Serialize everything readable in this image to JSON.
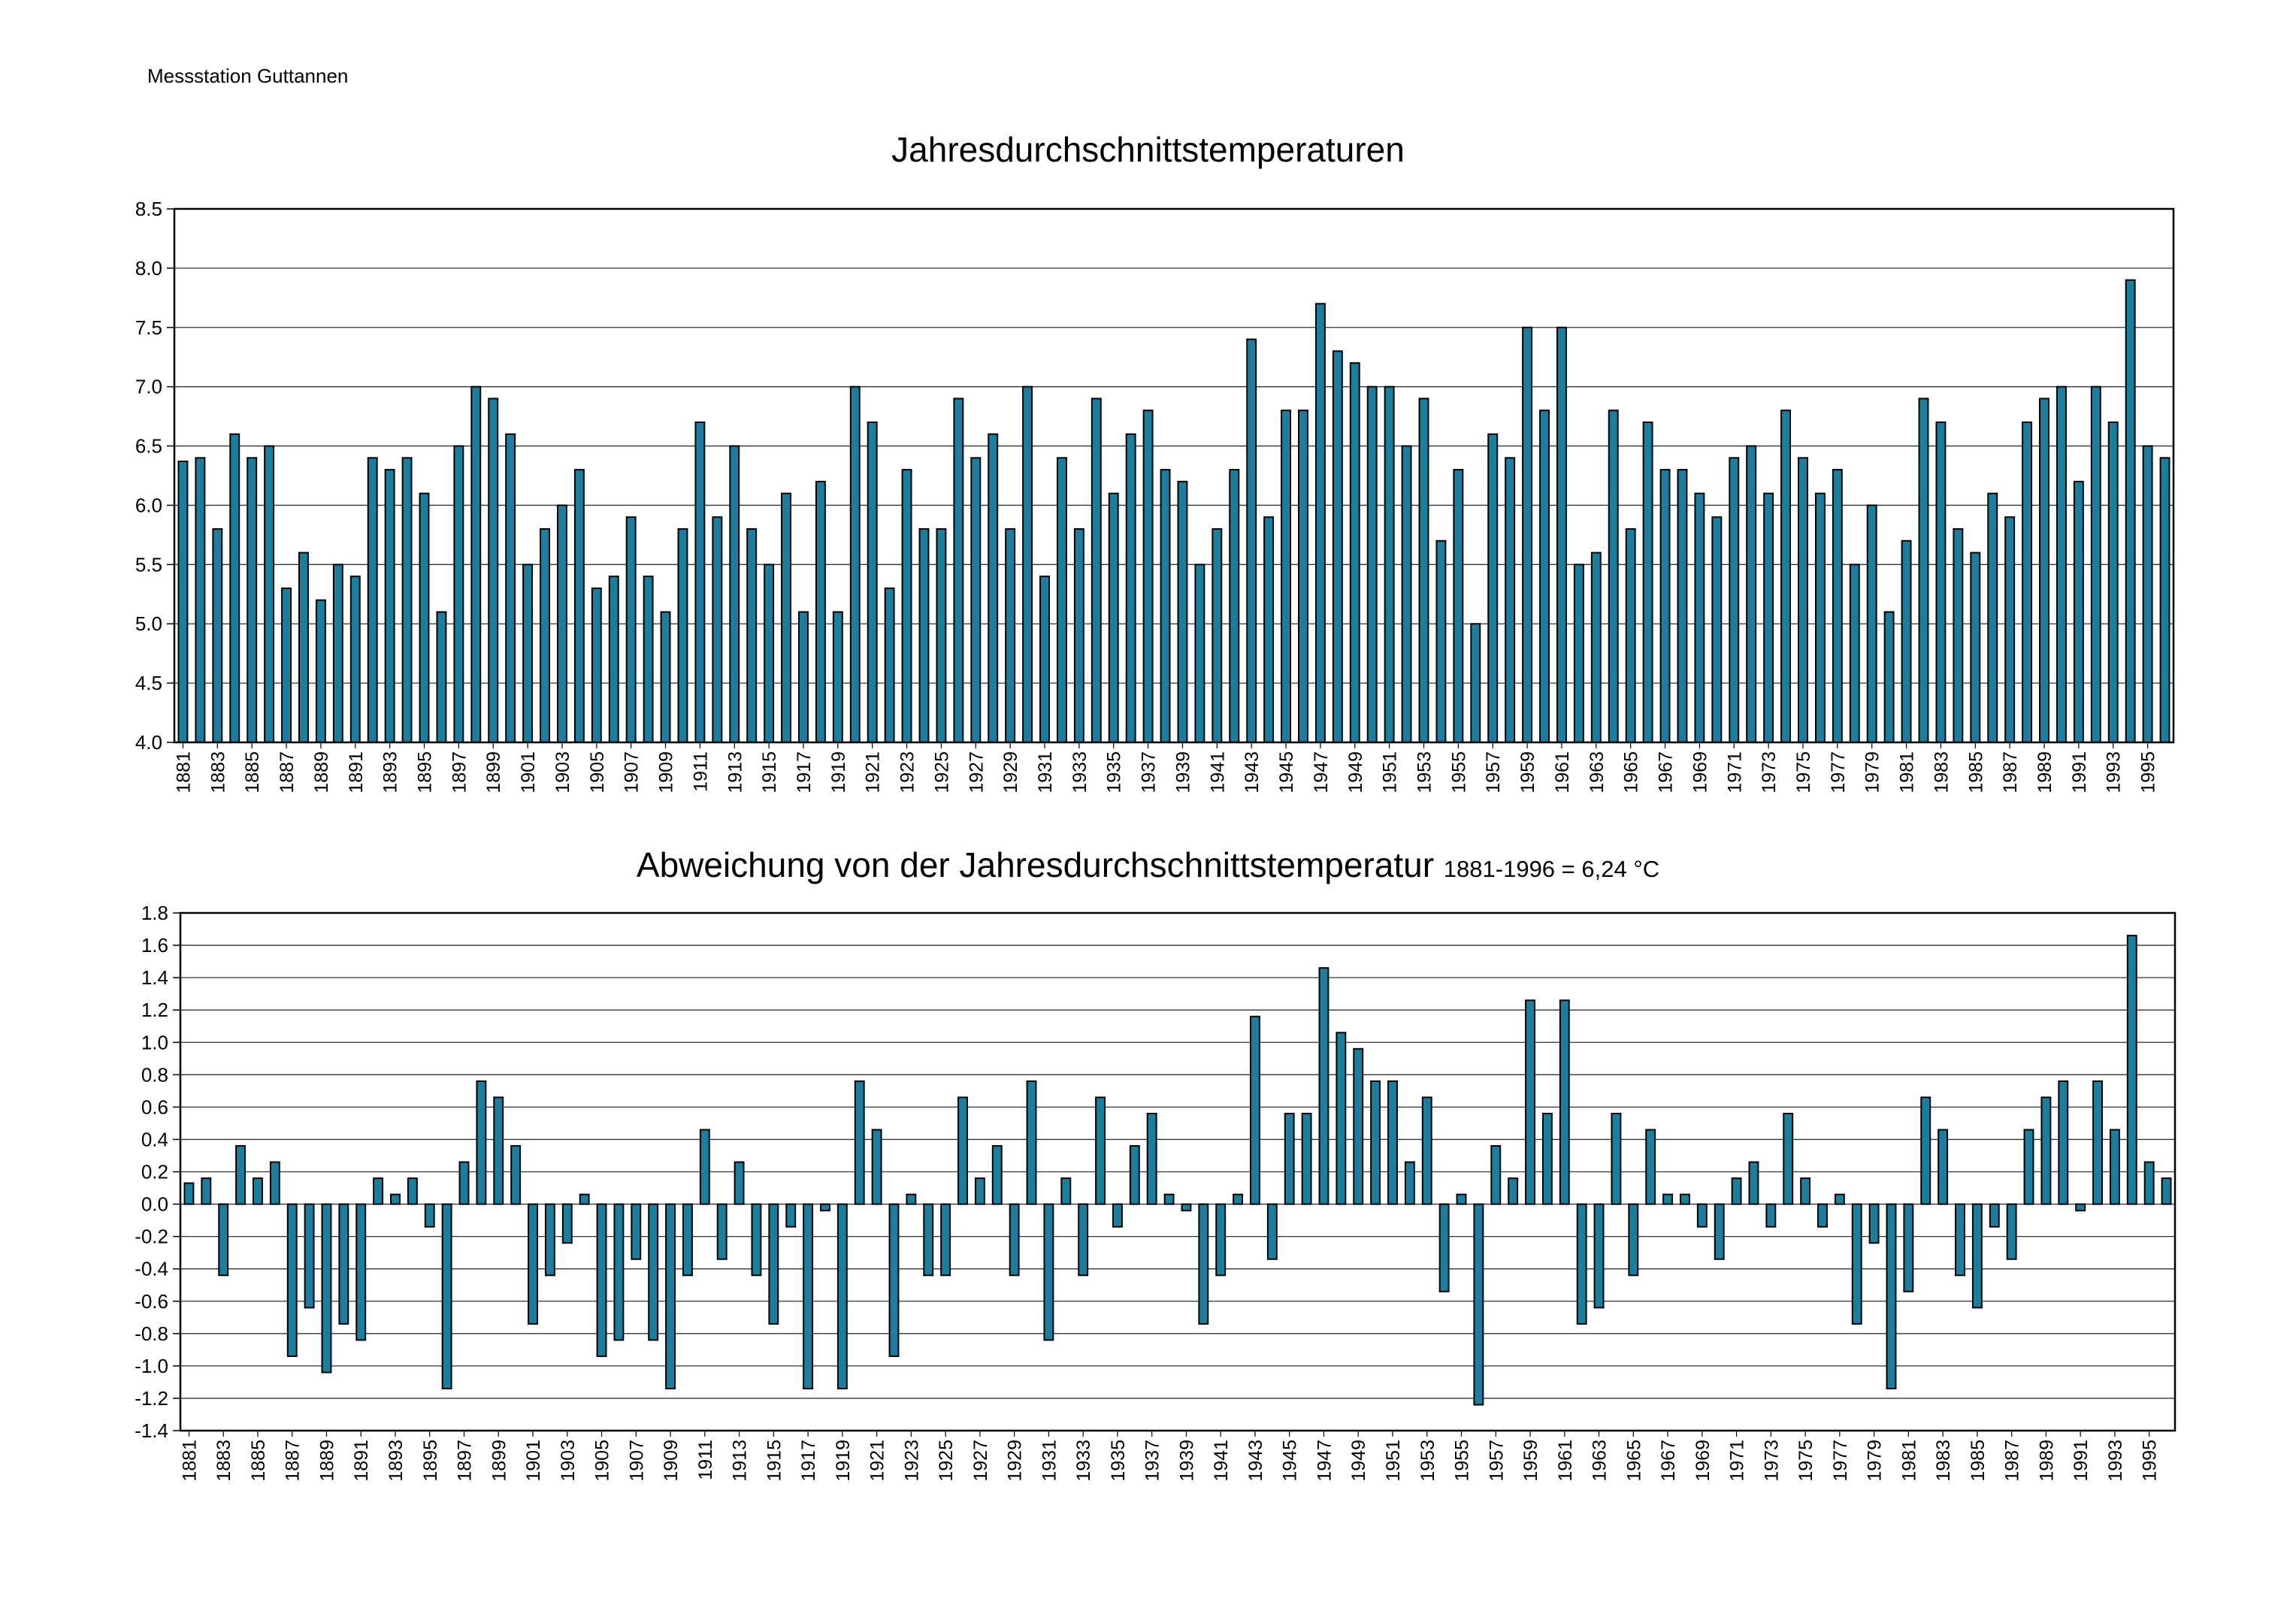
{
  "header": {
    "station": "Messstation Guttannen"
  },
  "chart_data": [
    {
      "type": "bar",
      "title": "Jahresdurchschnittstemperaturen",
      "xlabel": "",
      "ylabel": "",
      "ylim": [
        4.0,
        8.5
      ],
      "yticks": [
        "4.0",
        "4.5",
        "5.0",
        "5.5",
        "6.0",
        "6.5",
        "7.0",
        "7.5",
        "8.0",
        "8.5"
      ],
      "grid": true,
      "bar_color": "#1a7f9e",
      "years": [
        1881,
        1882,
        1883,
        1884,
        1885,
        1886,
        1887,
        1888,
        1889,
        1890,
        1891,
        1892,
        1893,
        1894,
        1895,
        1896,
        1897,
        1898,
        1899,
        1900,
        1901,
        1902,
        1903,
        1904,
        1905,
        1906,
        1907,
        1908,
        1909,
        1910,
        1911,
        1912,
        1913,
        1914,
        1915,
        1916,
        1917,
        1918,
        1919,
        1920,
        1921,
        1922,
        1923,
        1924,
        1925,
        1926,
        1927,
        1928,
        1929,
        1930,
        1931,
        1932,
        1933,
        1934,
        1935,
        1936,
        1937,
        1938,
        1939,
        1940,
        1941,
        1942,
        1943,
        1944,
        1945,
        1946,
        1947,
        1948,
        1949,
        1950,
        1951,
        1952,
        1953,
        1954,
        1955,
        1956,
        1957,
        1958,
        1959,
        1960,
        1961,
        1962,
        1963,
        1964,
        1965,
        1966,
        1967,
        1968,
        1969,
        1970,
        1971,
        1972,
        1973,
        1974,
        1975,
        1976,
        1977,
        1978,
        1979,
        1980,
        1981,
        1982,
        1983,
        1984,
        1985,
        1986,
        1987,
        1988,
        1989,
        1990,
        1991,
        1992,
        1993,
        1994,
        1995,
        1996
      ],
      "xtick_labels": [
        "1881",
        "1883",
        "1885",
        "1887",
        "1889",
        "1891",
        "1893",
        "1895",
        "1897",
        "1899",
        "1901",
        "1903",
        "1905",
        "1907",
        "1909",
        "1911",
        "1913",
        "1915",
        "1917",
        "1919",
        "1921",
        "1923",
        "1925",
        "1927",
        "1929",
        "1931",
        "1933",
        "1935",
        "1937",
        "1939",
        "1941",
        "1943",
        "1945",
        "1947",
        "1949",
        "1951",
        "1953",
        "1955",
        "1957",
        "1959",
        "1961",
        "1963",
        "1965",
        "1967",
        "1969",
        "1971",
        "1973",
        "1975",
        "1977",
        "1979",
        "1981",
        "1983",
        "1985",
        "1987",
        "1989",
        "1991",
        "1993",
        "1995"
      ],
      "values": [
        6.37,
        6.4,
        5.8,
        6.6,
        6.4,
        6.5,
        5.3,
        5.6,
        5.2,
        5.5,
        5.4,
        6.4,
        6.3,
        6.4,
        6.1,
        5.1,
        6.5,
        7.0,
        6.9,
        6.6,
        5.5,
        5.8,
        6.0,
        6.3,
        5.3,
        5.4,
        5.9,
        5.4,
        5.1,
        5.8,
        6.7,
        5.9,
        6.5,
        5.8,
        5.5,
        6.1,
        5.1,
        6.2,
        5.1,
        7.0,
        6.7,
        5.3,
        6.3,
        5.8,
        5.8,
        6.9,
        6.4,
        6.6,
        5.8,
        7.0,
        5.4,
        6.4,
        5.8,
        6.9,
        6.1,
        6.6,
        6.8,
        6.3,
        6.2,
        5.5,
        5.8,
        6.3,
        7.4,
        5.9,
        6.8,
        6.8,
        7.7,
        7.3,
        7.2,
        7.0,
        7.0,
        6.5,
        6.9,
        5.7,
        6.3,
        5.0,
        6.6,
        6.4,
        7.5,
        6.8,
        7.5,
        5.5,
        5.6,
        6.8,
        5.8,
        6.7,
        6.3,
        6.3,
        6.1,
        5.9,
        6.4,
        6.5,
        6.1,
        6.8,
        6.4,
        6.1,
        6.3,
        5.5,
        6.0,
        5.1,
        5.7,
        6.9,
        6.7,
        5.8,
        5.6,
        6.1,
        5.9,
        6.7,
        6.9,
        7.0,
        6.2,
        7.0,
        6.7,
        7.9,
        6.5,
        6.4
      ]
    },
    {
      "type": "bar",
      "title": "Abweichung von der Jahresdurchschnittstemperatur",
      "subtitle": "1881-1996 = 6,24 °C",
      "xlabel": "",
      "ylabel": "",
      "ylim": [
        -1.4,
        1.8
      ],
      "yticks": [
        "-1.4",
        "-1.2",
        "-1.0",
        "-0.8",
        "-0.6",
        "-0.4",
        "-0.2",
        "0.0",
        "0.2",
        "0.4",
        "0.6",
        "0.8",
        "1.0",
        "1.2",
        "1.4",
        "1.6",
        "1.8"
      ],
      "grid": true,
      "bar_color": "#1a7f9e",
      "xtick_labels": [
        "1881",
        "1883",
        "1885",
        "1887",
        "1889",
        "1891",
        "1893",
        "1895",
        "1897",
        "1899",
        "1901",
        "1903",
        "1905",
        "1907",
        "1909",
        "1911",
        "1913",
        "1915",
        "1917",
        "1919",
        "1921",
        "1923",
        "1925",
        "1927",
        "1929",
        "1931",
        "1933",
        "1935",
        "1937",
        "1939",
        "1941",
        "1943",
        "1945",
        "1947",
        "1949",
        "1951",
        "1953",
        "1955",
        "1957",
        "1959",
        "1961",
        "1963",
        "1965",
        "1967",
        "1969",
        "1971",
        "1973",
        "1975",
        "1977",
        "1979",
        "1981",
        "1983",
        "1985",
        "1987",
        "1989",
        "1991",
        "1993",
        "1995"
      ],
      "values": [
        0.13,
        0.16,
        -0.44,
        0.36,
        0.16,
        0.26,
        -0.94,
        -0.64,
        -1.04,
        -0.74,
        -0.84,
        0.16,
        0.06,
        0.16,
        -0.14,
        -1.14,
        0.26,
        0.76,
        0.66,
        0.36,
        -0.74,
        -0.44,
        -0.24,
        0.06,
        -0.94,
        -0.84,
        -0.34,
        -0.84,
        -1.14,
        -0.44,
        0.46,
        -0.34,
        0.26,
        -0.44,
        -0.74,
        -0.14,
        -1.14,
        -0.04,
        -1.14,
        0.76,
        0.46,
        -0.94,
        0.06,
        -0.44,
        -0.44,
        0.66,
        0.16,
        0.36,
        -0.44,
        0.76,
        -0.84,
        0.16,
        -0.44,
        0.66,
        -0.14,
        0.36,
        0.56,
        0.06,
        -0.04,
        -0.74,
        -0.44,
        0.06,
        1.16,
        -0.34,
        0.56,
        0.56,
        1.46,
        1.06,
        0.96,
        0.76,
        0.76,
        0.26,
        0.66,
        -0.54,
        0.06,
        -1.24,
        0.36,
        0.16,
        1.26,
        0.56,
        1.26,
        -0.74,
        -0.64,
        0.56,
        -0.44,
        0.46,
        0.06,
        0.06,
        -0.14,
        -0.34,
        0.16,
        0.26,
        -0.14,
        0.56,
        0.16,
        -0.14,
        0.06,
        -0.74,
        -0.24,
        -1.14,
        -0.54,
        0.66,
        0.46,
        -0.44,
        -0.64,
        -0.14,
        -0.34,
        0.46,
        0.66,
        0.76,
        -0.04,
        0.76,
        0.46,
        1.66,
        0.26,
        0.16
      ]
    }
  ]
}
